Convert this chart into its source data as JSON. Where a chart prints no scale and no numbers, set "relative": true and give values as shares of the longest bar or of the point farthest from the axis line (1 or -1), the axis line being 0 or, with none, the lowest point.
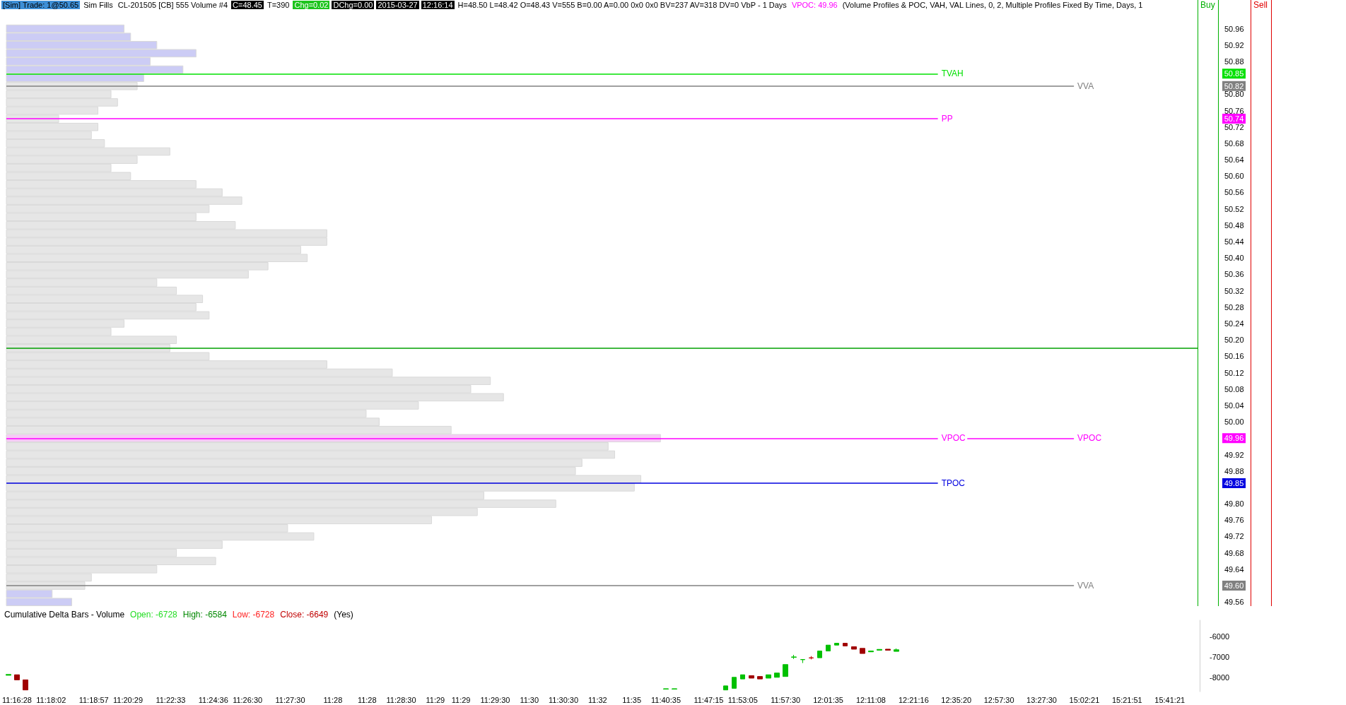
{
  "chart_data": [
    {
      "type": "bar",
      "orientation": "horizontal",
      "relative": true,
      "annotations": [
        "[Sim]  Trade: 1@50.65",
        "Sim Fills",
        "CL-201505 [CB]  555 Volume  #4",
        "C=48.45",
        "T=390",
        "Chg=0.02",
        "DChg=0.00",
        "2015-03-27",
        "12:16:14",
        "H=48.50 L=48.42 O=48.43 V=555 B=0.00 A=0.00 0x0 0x0 BV=237 AV=318 DV=0  VbP - 1 Days",
        "VPOC: 49.96",
        "(Volume Profiles & POC, VAH, VAL Lines, 0, 2, Multiple Profiles Fixed By Time, Days, 1",
        "Buy",
        "Sell",
        "50.85",
        "50.82",
        "50.74",
        "49.96",
        "49.85",
        "49.60"
      ],
      "x": [
        50.96,
        50.94,
        50.92,
        50.9,
        50.88,
        50.86,
        50.84,
        50.82,
        50.8,
        50.78,
        50.76,
        50.74,
        50.72,
        50.7,
        50.68,
        50.66,
        50.64,
        50.62,
        50.6,
        50.58,
        50.56,
        50.54,
        50.52,
        50.5,
        50.48,
        50.46,
        50.44,
        50.42,
        50.4,
        50.38,
        50.36,
        50.34,
        50.32,
        50.3,
        50.28,
        50.26,
        50.24,
        50.22,
        50.2,
        50.18,
        50.16,
        50.14,
        50.12,
        50.1,
        50.08,
        50.06,
        50.04,
        50.02,
        50,
        49.98,
        49.96,
        49.94,
        49.92,
        49.9,
        49.88,
        49.86,
        49.84,
        49.82,
        49.8,
        49.78,
        49.76,
        49.74,
        49.72,
        49.7,
        49.68,
        49.66,
        49.64,
        49.62,
        49.6,
        49.58,
        49.56
      ],
      "values": [
        0.18,
        0.19,
        0.23,
        0.29,
        0.22,
        0.27,
        0.21,
        0.2,
        0.16,
        0.17,
        0.14,
        0.08,
        0.14,
        0.13,
        0.15,
        0.25,
        0.2,
        0.16,
        0.19,
        0.29,
        0.33,
        0.36,
        0.31,
        0.29,
        0.35,
        0.49,
        0.49,
        0.45,
        0.46,
        0.4,
        0.37,
        0.23,
        0.26,
        0.3,
        0.29,
        0.31,
        0.18,
        0.16,
        0.26,
        0.25,
        0.31,
        0.49,
        0.59,
        0.74,
        0.71,
        0.76,
        0.63,
        0.55,
        0.57,
        0.68,
        1,
        0.92,
        0.93,
        0.88,
        0.87,
        0.97,
        0.96,
        0.73,
        0.84,
        0.72,
        0.65,
        0.43,
        0.47,
        0.33,
        0.26,
        0.32,
        0.23,
        0.13,
        0.12,
        0.07,
        0.1
      ],
      "colors": [
        "#ccccf5",
        "#ccccf5",
        "#ccccf5",
        "#ccccf5",
        "#ccccf5",
        "#ccccf5",
        "#ccccf5",
        "#e6e6e6",
        "#e6e6e6",
        "#e6e6e6",
        "#e6e6e6",
        "#e6e6e6",
        "#e6e6e6",
        "#e6e6e6",
        "#e6e6e6",
        "#e6e6e6",
        "#e6e6e6",
        "#e6e6e6",
        "#e6e6e6",
        "#e6e6e6",
        "#e6e6e6",
        "#e6e6e6",
        "#e6e6e6",
        "#e6e6e6",
        "#e6e6e6",
        "#e6e6e6",
        "#e6e6e6",
        "#e6e6e6",
        "#e6e6e6",
        "#e6e6e6",
        "#e6e6e6",
        "#e6e6e6",
        "#e6e6e6",
        "#e6e6e6",
        "#e6e6e6",
        "#e6e6e6",
        "#e6e6e6",
        "#e6e6e6",
        "#e6e6e6",
        "#e6e6e6",
        "#e6e6e6",
        "#e6e6e6",
        "#e6e6e6",
        "#e6e6e6",
        "#e6e6e6",
        "#e6e6e6",
        "#e6e6e6",
        "#e6e6e6",
        "#e6e6e6",
        "#e6e6e6",
        "#f8c8f8",
        "#e6e6e6",
        "#e6e6e6",
        "#e6e6e6",
        "#e6e6e6",
        "#e6e6e6",
        "#e6e6e6",
        "#e6e6e6",
        "#e6e6e6",
        "#e6e6e6",
        "#e6e6e6",
        "#e6e6e6",
        "#e6e6e6",
        "#e6e6e6",
        "#e6e6e6",
        "#e6e6e6",
        "#e6e6e6",
        "#e6e6e6",
        "#e6e6e6",
        "#ccccf5",
        "#ccccf5"
      ],
      "ylim": [
        49.55,
        51.03
      ],
      "yticks": [
        50.96,
        50.92,
        50.88,
        {
          "value": 50.8,
          "label": "50.80"
        },
        50.76,
        50.72,
        50.68,
        50.64,
        {
          "value": 50.6,
          "label": "50.60"
        },
        50.56,
        50.52,
        50.48,
        50.44,
        {
          "value": 50.4,
          "label": "50.40"
        },
        50.36,
        50.32,
        50.28,
        50.24,
        {
          "value": 50.2,
          "label": "50.20"
        },
        50.16,
        50.12,
        50.08,
        50.04,
        {
          "value": 50,
          "label": "50.00"
        },
        49.96,
        49.92,
        49.88,
        {
          "value": 49.8,
          "label": "49.80"
        },
        49.76,
        49.72,
        49.68,
        49.64,
        49.56
      ],
      "ref_lines": [
        {
          "axis": "y",
          "value": 50.85,
          "label": "TVAH",
          "color": "#00e000"
        },
        {
          "axis": "y",
          "value": 50.82,
          "label": "VVA",
          "color": "#808080"
        },
        {
          "axis": "y",
          "value": 50.74,
          "label": "PP",
          "color": "#ff00ff"
        },
        {
          "axis": "y",
          "value": 50.18,
          "label": null,
          "color": "#00a000"
        },
        {
          "axis": "y",
          "value": 49.96,
          "label": "VPOC",
          "color": "#ff00ff"
        },
        {
          "axis": "y",
          "value": 49.96,
          "label": "VPOC",
          "color": "#ff00ff"
        },
        {
          "axis": "y",
          "value": 49.85,
          "label": "TPOC",
          "color": "#0000e0"
        },
        {
          "axis": "y",
          "value": 49.6,
          "label": "VVA",
          "color": "#808080"
        }
      ]
    },
    {
      "type": "candlestick",
      "title": "Cumulative Delta Bars - Volume",
      "annotations": [
        "Open: -6728",
        "High: -6584",
        "Low: -6728",
        "Close: -6649",
        "(Yes)"
      ],
      "categories": [
        null,
        "11:16:28",
        null,
        null,
        null,
        "11:18:02",
        null,
        null,
        null,
        null,
        "11:18:57",
        null,
        null,
        null,
        "11:20:29",
        null,
        null,
        null,
        null,
        "11:22:33",
        null,
        null,
        null,
        null,
        "11:24:36",
        null,
        null,
        null,
        "11:26:30",
        null,
        null,
        null,
        null,
        "11:27:30",
        null,
        null,
        null,
        null,
        "11:28",
        null,
        null,
        null,
        "11:28",
        null,
        null,
        null,
        "11:28:30",
        null,
        null,
        null,
        "11:29",
        null,
        null,
        "11:29",
        null,
        null,
        null,
        "11:29:30",
        null,
        null,
        null,
        "11:30",
        null,
        null,
        null,
        "11:30:30",
        null,
        null,
        null,
        "11:32",
        null,
        null,
        null,
        "11:35",
        null,
        null,
        null,
        "11:40:35",
        null,
        null,
        null,
        null,
        "11:47:15",
        null,
        null,
        null,
        "11:53:05",
        null,
        null,
        null,
        null,
        "11:57:30",
        null,
        null,
        null,
        null,
        "12:01:35",
        null,
        null,
        null,
        null,
        "12:11:08",
        null,
        null,
        null,
        null,
        "12:21:16",
        null,
        null,
        null,
        null,
        "12:35:20",
        null,
        null,
        null,
        null,
        "12:57:30",
        null,
        null,
        null,
        null,
        "13:27:30",
        null,
        null,
        null,
        null,
        "15:02:21",
        null,
        null,
        null,
        null,
        "15:21:51",
        null,
        null,
        null,
        null,
        "15:41:21",
        null,
        null,
        null
      ],
      "ohlc": [
        [
          -7900,
          -7860,
          -7900,
          -7860
        ],
        [
          -7875,
          -7875,
          -8125,
          -8125
        ],
        [
          -8125,
          -8125,
          -8620,
          -8620
        ],
        null,
        null,
        null,
        null,
        null,
        null,
        null,
        null,
        null,
        null,
        null,
        null,
        null,
        null,
        null,
        null,
        null,
        null,
        null,
        null,
        null,
        null,
        null,
        null,
        null,
        null,
        null,
        null,
        null,
        null,
        null,
        null,
        null,
        null,
        null,
        null,
        null,
        null,
        null,
        null,
        null,
        null,
        null,
        null,
        null,
        null,
        null,
        null,
        null,
        null,
        null,
        null,
        null,
        null,
        null,
        null,
        null,
        null,
        null,
        null,
        null,
        null,
        null,
        null,
        null,
        null,
        null,
        null,
        null,
        null,
        null,
        null,
        null,
        null,
        [
          -8580,
          -8560,
          -8580,
          -8560
        ],
        [
          -8580,
          -8560,
          -8580,
          -8560
        ],
        null,
        null,
        null,
        null,
        null,
        [
          -8620,
          -8420,
          -8620,
          -8420
        ],
        [
          -8540,
          -8000,
          -8540,
          -8000
        ],
        [
          -8080,
          -7875,
          -8080,
          -7875
        ],
        [
          -7920,
          -7920,
          -8040,
          -8040
        ],
        [
          -7960,
          -7960,
          -8080,
          -8080
        ],
        [
          -8040,
          -7875,
          -8040,
          -7875
        ],
        [
          -8000,
          -7790,
          -8000,
          -7790
        ],
        [
          -7960,
          -7375,
          -7960,
          -7375
        ],
        [
          -7000,
          -6900,
          -7100,
          -7015
        ],
        [
          -7125,
          -7125,
          -7300,
          -7135
        ],
        [
          -7040,
          -6960,
          -7120,
          -7055
        ],
        [
          -7040,
          -6710,
          -7040,
          -6710
        ],
        [
          -6710,
          -6420,
          -6710,
          -6420
        ],
        [
          -6420,
          -6330,
          -6420,
          -6330
        ],
        [
          -6330,
          -6330,
          -6460,
          -6460
        ],
        [
          -6500,
          -6500,
          -6620,
          -6620
        ],
        [
          -6580,
          -6580,
          -6830,
          -6830
        ],
        [
          -6750,
          -6710,
          -6750,
          -6710
        ],
        [
          -6670,
          -6630,
          -6670,
          -6630
        ],
        [
          -6620,
          -6620,
          -6670,
          -6670
        ],
        [
          -6728,
          -6584,
          -6728,
          -6649
        ],
        null,
        null,
        null,
        null,
        null,
        null,
        null,
        null,
        null,
        null,
        null,
        null,
        null,
        null,
        null,
        null,
        null,
        null,
        null,
        null,
        null,
        null,
        null,
        null,
        null,
        null,
        null,
        null,
        null,
        null,
        null,
        null,
        null,
        null,
        null
      ],
      "colors": [
        "#00c000",
        "#a00000",
        "#a00000",
        null,
        null,
        null,
        null,
        null,
        null,
        null,
        null,
        null,
        null,
        null,
        null,
        null,
        null,
        null,
        null,
        null,
        null,
        null,
        null,
        null,
        null,
        null,
        null,
        null,
        null,
        null,
        null,
        null,
        null,
        null,
        null,
        null,
        null,
        null,
        null,
        null,
        null,
        null,
        null,
        null,
        null,
        null,
        null,
        null,
        null,
        null,
        null,
        null,
        null,
        null,
        null,
        null,
        null,
        null,
        null,
        null,
        null,
        null,
        null,
        null,
        null,
        null,
        null,
        null,
        null,
        null,
        null,
        null,
        null,
        null,
        null,
        null,
        null,
        "#00c000",
        "#00c000",
        null,
        null,
        null,
        null,
        null,
        "#00c000",
        "#00c000",
        "#00c000",
        "#a00000",
        "#a00000",
        "#00c000",
        "#00c000",
        "#00c000",
        "#00c000",
        "#00c000",
        "#c00000",
        "#00c000",
        "#00c000",
        "#00c000",
        "#a00000",
        "#a00000",
        "#a00000",
        "#00c000",
        "#00c000",
        "#a00000",
        "#00c000",
        null,
        null,
        null,
        null,
        null,
        null,
        null,
        null,
        null,
        null,
        null,
        null,
        null,
        null,
        null,
        null,
        null,
        null,
        null,
        null,
        null,
        null,
        null,
        null,
        null,
        null,
        null,
        null,
        null,
        null,
        null,
        null,
        null,
        null,
        null
      ],
      "ylim": [
        -8700,
        -5200
      ],
      "yticks": [
        -6000,
        -7000,
        -8000
      ]
    }
  ]
}
